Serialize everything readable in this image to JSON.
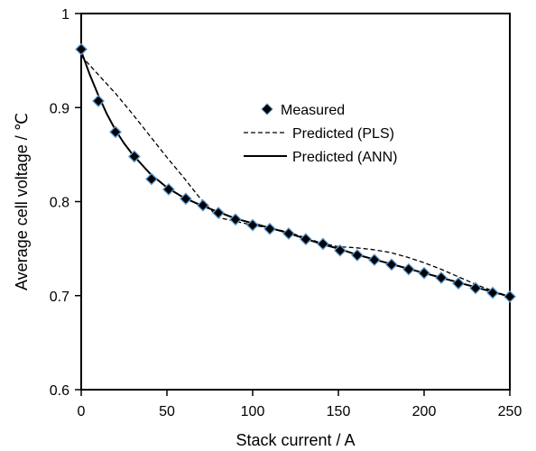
{
  "chart_data": {
    "type": "scatter",
    "xlabel": "Stack current / A",
    "ylabel": "Average cell voltage / ℃",
    "xlim": [
      0,
      250
    ],
    "ylim": [
      0.6,
      1.0
    ],
    "xticks": [
      "0",
      "50",
      "100",
      "150",
      "200",
      "250"
    ],
    "yticks": [
      "0.6",
      "0.7",
      "0.8",
      "0.9",
      "1"
    ],
    "legend_position": "upper-right",
    "grid": false,
    "series": [
      {
        "name": "Measured",
        "style": "markers",
        "marker": "diamond",
        "marker_color": "#000000",
        "marker_edge": "#5b9bd5",
        "x": [
          0,
          10,
          20,
          31,
          41,
          51,
          61,
          71,
          80,
          90,
          100,
          110,
          121,
          131,
          141,
          151,
          161,
          171,
          181,
          191,
          200,
          210,
          220,
          230,
          240,
          250
        ],
        "y": [
          0.962,
          0.907,
          0.874,
          0.848,
          0.824,
          0.813,
          0.803,
          0.796,
          0.788,
          0.781,
          0.775,
          0.771,
          0.766,
          0.76,
          0.755,
          0.748,
          0.743,
          0.738,
          0.733,
          0.728,
          0.724,
          0.719,
          0.713,
          0.708,
          0.703,
          0.699
        ]
      },
      {
        "name": "Predicted (PLS)",
        "style": "dashed-line",
        "color": "#000000",
        "x": [
          0,
          10,
          20,
          30,
          40,
          50,
          60,
          70,
          80,
          90,
          100,
          110,
          120,
          130,
          140,
          150,
          160,
          170,
          180,
          190,
          200,
          210,
          220,
          230,
          240,
          250
        ],
        "y": [
          0.955,
          0.935,
          0.915,
          0.893,
          0.87,
          0.847,
          0.825,
          0.802,
          0.783,
          0.779,
          0.775,
          0.772,
          0.768,
          0.762,
          0.756,
          0.752,
          0.751,
          0.749,
          0.746,
          0.741,
          0.735,
          0.728,
          0.72,
          0.712,
          0.705,
          0.699
        ]
      },
      {
        "name": "Predicted (ANN)",
        "style": "solid-line",
        "color": "#000000",
        "x": [
          0,
          5,
          10,
          15,
          20,
          25,
          30,
          40,
          50,
          60,
          70,
          80,
          90,
          100,
          110,
          120,
          130,
          140,
          150,
          160,
          170,
          180,
          190,
          200,
          210,
          220,
          230,
          240,
          250
        ],
        "y": [
          0.96,
          0.935,
          0.913,
          0.893,
          0.876,
          0.862,
          0.85,
          0.83,
          0.815,
          0.804,
          0.796,
          0.789,
          0.782,
          0.777,
          0.772,
          0.767,
          0.761,
          0.755,
          0.75,
          0.744,
          0.739,
          0.734,
          0.729,
          0.724,
          0.719,
          0.714,
          0.709,
          0.704,
          0.699
        ]
      }
    ]
  }
}
